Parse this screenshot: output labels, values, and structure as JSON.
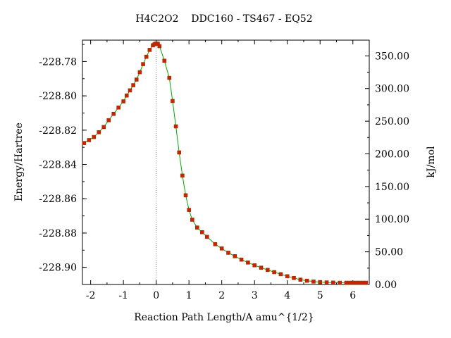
{
  "chart_data": {
    "type": "line",
    "title": "H4C2O2    DDC160 - TS467 - EQ52",
    "xlabel": "Reaction Path Length/A amu^{1/2}",
    "ylabel_left": "Energy/Hartree",
    "ylabel_right": "kJ/mol",
    "xlim": [
      -2.25,
      6.5
    ],
    "ylim_left": [
      -228.91,
      -228.7675
    ],
    "ylim_right": [
      0,
      374.1
    ],
    "x_ticks": [
      -2,
      -1,
      0,
      1,
      2,
      3,
      4,
      5,
      6
    ],
    "x_tick_labels": [
      "-2",
      "-1",
      "0",
      "1",
      "2",
      "3",
      "4",
      "5",
      "6"
    ],
    "y_left_ticks": [
      -228.78,
      -228.8,
      -228.82,
      -228.84,
      -228.86,
      -228.88,
      -228.9
    ],
    "y_left_tick_labels": [
      "-228.78",
      "-228.80",
      "-228.82",
      "-228.84",
      "-228.86",
      "-228.88",
      "-228.90"
    ],
    "y_right_ticks": [
      0,
      50,
      100,
      150,
      200,
      250,
      300,
      350
    ],
    "y_right_tick_labels": [
      "0.00",
      "50.00",
      "100.00",
      "150.00",
      "200.00",
      "250.00",
      "300.00",
      "350.00"
    ],
    "ts_marker_x": 0,
    "grid": false,
    "colors": {
      "line": "#00aa00",
      "marker": "#cc2200",
      "marker_edge": "#993300",
      "ts_line": "#888888"
    },
    "series": [
      {
        "x": [
          -2.2,
          -2.05,
          -1.9,
          -1.75,
          -1.6,
          -1.45,
          -1.3,
          -1.15,
          -1.0,
          -0.9,
          -0.8,
          -0.7,
          -0.6,
          -0.5,
          -0.4,
          -0.3,
          -0.2,
          -0.1,
          -0.05,
          0.0,
          0.05,
          0.1,
          0.25,
          0.4,
          0.5,
          0.6,
          0.7,
          0.8,
          0.9,
          1.0,
          1.1,
          1.25,
          1.4,
          1.55,
          1.8,
          2.0,
          2.2,
          2.4,
          2.6,
          2.8,
          3.0,
          3.2,
          3.4,
          3.6,
          3.8,
          4.0,
          4.2,
          4.4,
          4.6,
          4.8,
          5.0,
          5.2,
          5.4,
          5.6,
          5.8,
          5.9,
          6.0,
          6.1,
          6.2,
          6.3,
          6.4
        ],
        "y": [
          -228.8275,
          -228.8258,
          -228.824,
          -228.8212,
          -228.8182,
          -228.8142,
          -228.8105,
          -228.8068,
          -228.8032,
          -228.7998,
          -228.7968,
          -228.7938,
          -228.7905,
          -228.7862,
          -228.7815,
          -228.7772,
          -228.7732,
          -228.7705,
          -228.7698,
          -228.7695,
          -228.7696,
          -228.771,
          -228.7795,
          -228.7895,
          -228.803,
          -228.8178,
          -228.833,
          -228.8465,
          -228.858,
          -228.8665,
          -228.8722,
          -228.8768,
          -228.8795,
          -228.8822,
          -228.8865,
          -228.889,
          -228.8915,
          -228.8935,
          -228.8955,
          -228.8972,
          -228.8988,
          -228.9002,
          -228.9015,
          -228.9028,
          -228.904,
          -228.9052,
          -228.9062,
          -228.9072,
          -228.9078,
          -228.9083,
          -228.9086,
          -228.9088,
          -228.9089,
          -228.909,
          -228.909,
          -228.909,
          -228.909,
          -228.909,
          -228.909,
          -228.909,
          -228.909
        ]
      }
    ]
  }
}
